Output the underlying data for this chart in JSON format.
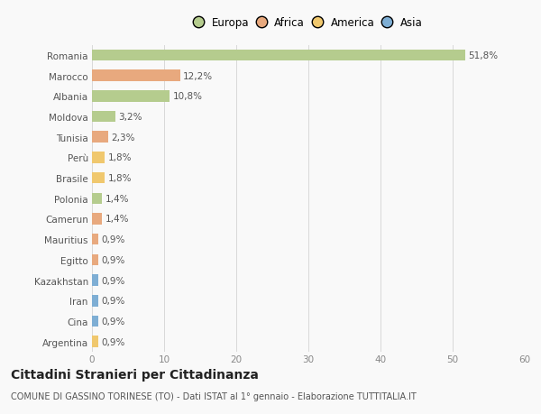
{
  "countries": [
    "Romania",
    "Marocco",
    "Albania",
    "Moldova",
    "Tunisia",
    "Perù",
    "Brasile",
    "Polonia",
    "Camerun",
    "Mauritius",
    "Egitto",
    "Kazakhstan",
    "Iran",
    "Cina",
    "Argentina"
  ],
  "values": [
    51.8,
    12.2,
    10.8,
    3.2,
    2.3,
    1.8,
    1.8,
    1.4,
    1.4,
    0.9,
    0.9,
    0.9,
    0.9,
    0.9,
    0.9
  ],
  "labels": [
    "51,8%",
    "12,2%",
    "10,8%",
    "3,2%",
    "2,3%",
    "1,8%",
    "1,8%",
    "1,4%",
    "1,4%",
    "0,9%",
    "0,9%",
    "0,9%",
    "0,9%",
    "0,9%",
    "0,9%"
  ],
  "continents": [
    "Europa",
    "Africa",
    "Europa",
    "Europa",
    "Africa",
    "America",
    "America",
    "Europa",
    "Africa",
    "Africa",
    "Africa",
    "Asia",
    "Asia",
    "Asia",
    "America"
  ],
  "continent_colors": {
    "Europa": "#b5cc8e",
    "Africa": "#e8a97e",
    "America": "#f0c86e",
    "Asia": "#7eaed4"
  },
  "xlim": [
    0,
    60
  ],
  "xticks": [
    0,
    10,
    20,
    30,
    40,
    50,
    60
  ],
  "title": "Cittadini Stranieri per Cittadinanza",
  "subtitle": "COMUNE DI GASSINO TORINESE (TO) - Dati ISTAT al 1° gennaio - Elaborazione TUTTITALIA.IT",
  "background_color": "#f9f9f9",
  "bar_height": 0.55,
  "grid_color": "#d8d8d8",
  "label_fontsize": 7.5,
  "tick_fontsize": 7.5,
  "title_fontsize": 10,
  "subtitle_fontsize": 7
}
